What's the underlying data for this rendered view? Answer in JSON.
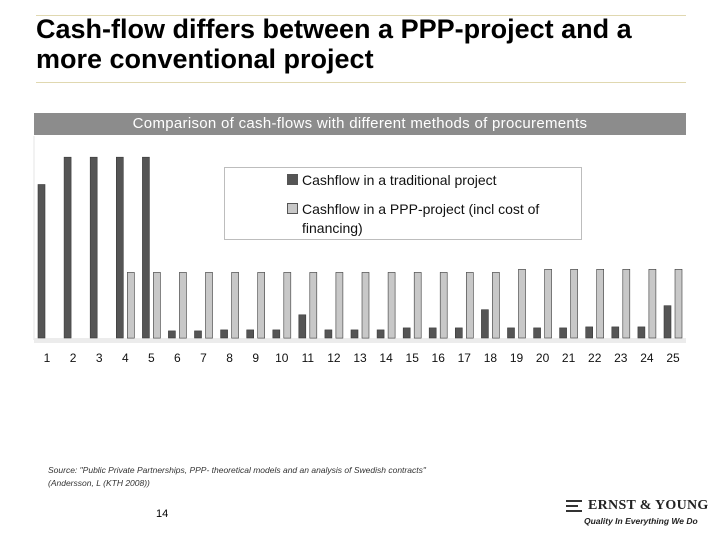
{
  "slide": {
    "title": "Cash-flow differs between a PPP-project and a more conventional project",
    "page_number": "14",
    "source": "Source: \"Public Private Partnerships, PPP- theoretical models and an analysis of Swedish contracts\" (Andersson, L (KTH 2008))",
    "logo": {
      "name": "ERNST & YOUNG",
      "tagline": "Quality In Everything We Do"
    }
  },
  "chart_data": {
    "type": "bar",
    "title": "Comparison of cash-flows with different methods of procurements",
    "categories": [
      "1",
      "2",
      "3",
      "4",
      "5",
      "6",
      "7",
      "8",
      "9",
      "10",
      "11",
      "12",
      "13",
      "14",
      "15",
      "16",
      "17",
      "18",
      "19",
      "20",
      "21",
      "22",
      "23",
      "24",
      "25"
    ],
    "series": [
      {
        "name": "Cashflow in a traditional project",
        "color": "#555555",
        "values": [
          152,
          179,
          179,
          179,
          179,
          7,
          7,
          8,
          8,
          8,
          23,
          8,
          8,
          8,
          10,
          10,
          10,
          28,
          10,
          10,
          10,
          11,
          11,
          11,
          32
        ]
      },
      {
        "name": "Cashflow in a PPP-project (incl cost of financing)",
        "color": "#c8c8c8",
        "values": [
          0,
          0,
          0,
          65,
          65,
          65,
          65,
          65,
          65,
          65,
          65,
          65,
          65,
          65,
          65,
          65,
          65,
          65,
          68,
          68,
          68,
          68,
          68,
          68,
          68
        ]
      }
    ],
    "ylim": [
      0,
      200
    ],
    "grid": false,
    "legend": "top-center"
  }
}
